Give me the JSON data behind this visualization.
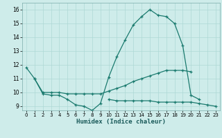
{
  "title": "",
  "xlabel": "Humidex (Indice chaleur)",
  "bg_color": "#ceecea",
  "line_color": "#1a7a6e",
  "grid_color": "#aed8d5",
  "xlim": [
    -0.5,
    23.5
  ],
  "ylim": [
    8.7,
    16.5
  ],
  "xticks": [
    0,
    1,
    2,
    3,
    4,
    5,
    6,
    7,
    8,
    9,
    10,
    11,
    12,
    13,
    14,
    15,
    16,
    17,
    18,
    19,
    20,
    21,
    22,
    23
  ],
  "yticks": [
    9,
    10,
    11,
    12,
    13,
    14,
    15,
    16
  ],
  "line1_x": [
    0,
    1,
    2,
    3,
    4,
    5,
    6,
    7,
    8,
    9,
    10,
    11,
    12,
    13,
    14,
    15,
    16,
    17,
    18,
    19,
    20,
    21
  ],
  "line1_y": [
    11.8,
    11.0,
    9.9,
    9.8,
    9.8,
    9.5,
    9.1,
    9.0,
    8.7,
    9.2,
    11.1,
    12.6,
    13.8,
    14.9,
    15.5,
    16.0,
    15.6,
    15.5,
    15.0,
    13.4,
    9.8,
    9.5
  ],
  "line2_x": [
    1,
    2,
    3,
    4,
    5,
    6,
    7,
    8,
    9,
    10,
    11,
    12,
    13,
    14,
    15,
    16,
    17,
    18,
    19,
    20
  ],
  "line2_y": [
    11.0,
    10.0,
    10.0,
    10.0,
    9.9,
    9.9,
    9.9,
    9.9,
    9.9,
    10.1,
    10.3,
    10.5,
    10.8,
    11.0,
    11.2,
    11.4,
    11.6,
    11.6,
    11.6,
    11.5
  ],
  "line3_x": [
    10,
    11,
    12,
    13,
    14,
    15,
    16,
    17,
    18,
    19,
    20,
    21,
    22,
    23
  ],
  "line3_y": [
    9.5,
    9.4,
    9.4,
    9.4,
    9.4,
    9.4,
    9.3,
    9.3,
    9.3,
    9.3,
    9.3,
    9.2,
    9.1,
    9.0
  ]
}
